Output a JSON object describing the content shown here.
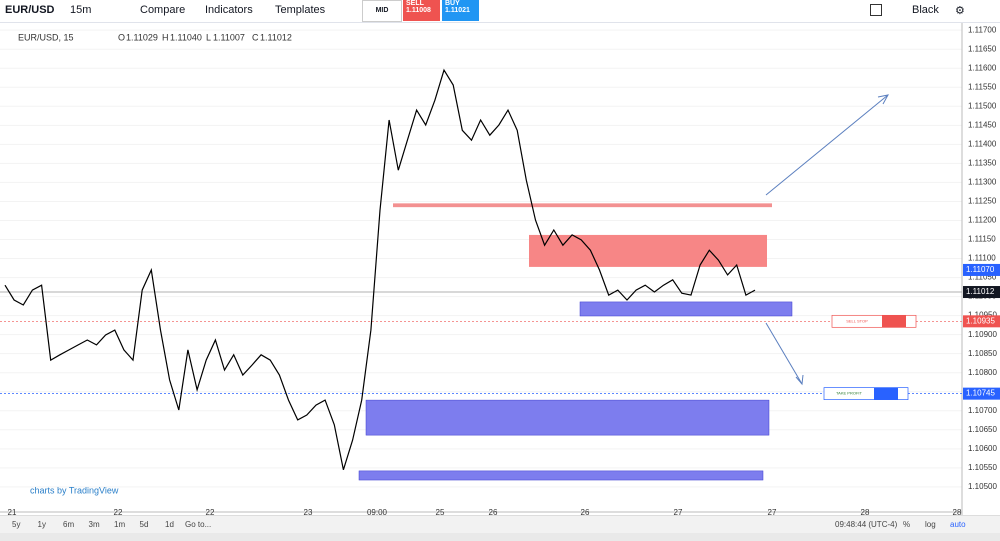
{
  "toolbar": {
    "symbol": "EUR/USD",
    "interval": "15m",
    "compare": "Compare",
    "indicators": "Indicators",
    "templates": "Templates",
    "mid": "MID",
    "sell_label": "SELL",
    "sell_price": "1.11008",
    "buy_label": "BUY",
    "buy_price": "1.11021",
    "theme": "Black"
  },
  "legend": {
    "symbol": "EUR/USD, 15",
    "open_label": "O",
    "open": "1.11029",
    "high_label": "H",
    "high": "1.11040",
    "low_label": "L",
    "low": "1.11007",
    "close_label": "C",
    "close": "1.11012"
  },
  "chart_data": {
    "type": "line",
    "color": "#000000",
    "ylim": [
      1.10434,
      1.11711
    ],
    "yticks": [
      {
        "value": 1.105,
        "label": "1.10500"
      },
      {
        "value": 1.1055,
        "label": "1.10550"
      },
      {
        "value": 1.106,
        "label": "1.10600"
      },
      {
        "value": 1.1065,
        "label": "1.10650"
      },
      {
        "value": 1.107,
        "label": "1.10700"
      },
      {
        "value": 1.1075,
        "label": "1.10750"
      },
      {
        "value": 1.108,
        "label": "1.10800"
      },
      {
        "value": 1.1085,
        "label": "1.10850"
      },
      {
        "value": 1.109,
        "label": "1.10900"
      },
      {
        "value": 1.1095,
        "label": "1.10950"
      },
      {
        "value": 1.11,
        "label": "1.11000"
      },
      {
        "value": 1.1105,
        "label": "1.11050"
      },
      {
        "value": 1.111,
        "label": "1.11100"
      },
      {
        "value": 1.1115,
        "label": "1.11150"
      },
      {
        "value": 1.112,
        "label": "1.11200"
      },
      {
        "value": 1.1125,
        "label": "1.11250"
      },
      {
        "value": 1.113,
        "label": "1.11300"
      },
      {
        "value": 1.1135,
        "label": "1.11350"
      },
      {
        "value": 1.114,
        "label": "1.11400"
      },
      {
        "value": 1.1145,
        "label": "1.11450"
      },
      {
        "value": 1.115,
        "label": "1.11500"
      },
      {
        "value": 1.1155,
        "label": "1.11550"
      },
      {
        "value": 1.116,
        "label": "1.11600"
      },
      {
        "value": 1.1165,
        "label": "1.11650"
      },
      {
        "value": 1.117,
        "label": "1.11700"
      }
    ],
    "xlabels": [
      "21",
      "22",
      "22",
      "23",
      "09:00",
      "25",
      "26",
      "26",
      "27",
      "27",
      "28",
      "28"
    ],
    "values": [
      1.1103,
      1.10991,
      1.10978,
      1.11017,
      1.1103,
      1.10833,
      1.10847,
      1.1086,
      1.10873,
      1.10886,
      1.10873,
      1.10899,
      1.10912,
      1.1086,
      1.10833,
      1.11017,
      1.1107,
      1.10912,
      1.10781,
      1.10702,
      1.1086,
      1.10755,
      1.10833,
      1.10886,
      1.10807,
      1.10847,
      1.10794,
      1.1082,
      1.10847,
      1.10833,
      1.10794,
      1.10728,
      1.10676,
      1.10689,
      1.10715,
      1.10728,
      1.10663,
      1.10545,
      1.10623,
      1.10728,
      1.10912,
      1.11227,
      1.11464,
      1.11332,
      1.11411,
      1.1149,
      1.11451,
      1.11516,
      1.11595,
      1.11556,
      1.11437,
      1.11411,
      1.11464,
      1.11424,
      1.11451,
      1.1149,
      1.11437,
      1.11306,
      1.11201,
      1.11135,
      1.11175,
      1.11135,
      1.11162,
      1.11149,
      1.11122,
      1.1107,
      1.11004,
      1.11017,
      1.10991,
      1.11017,
      1.1103,
      1.11012,
      1.1103,
      1.11044,
      1.11009,
      1.11004,
      1.11083,
      1.11122,
      1.11096,
      1.11057,
      1.11083,
      1.11004,
      1.11017
    ],
    "zones": [
      {
        "color": "#f28b8b",
        "top": 1.11245,
        "bottom": 1.11235
      },
      {
        "color": "#f77f7f",
        "top": 1.11162,
        "bottom": 1.11078
      },
      {
        "color": "#7777ee",
        "top": 1.10986,
        "bottom": 1.10949
      },
      {
        "color": "#7777ee",
        "top": 1.10728,
        "bottom": 1.10636
      },
      {
        "color": "#7777ee",
        "top": 1.10542,
        "bottom": 1.10518
      }
    ],
    "price_tags": [
      {
        "color": "#2962ff",
        "price": {
          "value": 1.1107,
          "label": "1.11070"
        }
      },
      {
        "color": "#131722",
        "price": {
          "value": 1.11012,
          "label": "1.11012"
        }
      },
      {
        "color": "#ef5350",
        "price": {
          "value": 1.10935,
          "label": "1.10935"
        }
      },
      {
        "color": "#2962ff",
        "price": {
          "value": 1.10745,
          "label": "1.10745"
        }
      }
    ],
    "orders": [
      "SELL STOP",
      "TAKE PROFIT"
    ],
    "watermark": "charts by TradingView"
  },
  "bottom_bar": {
    "ranges": [
      "5y",
      "1y",
      "6m",
      "3m",
      "1m",
      "5d",
      "1d"
    ],
    "goto": "Go to...",
    "time": "09:48:44 (UTC-4)",
    "percent": "%",
    "log": "log",
    "auto": "auto"
  }
}
